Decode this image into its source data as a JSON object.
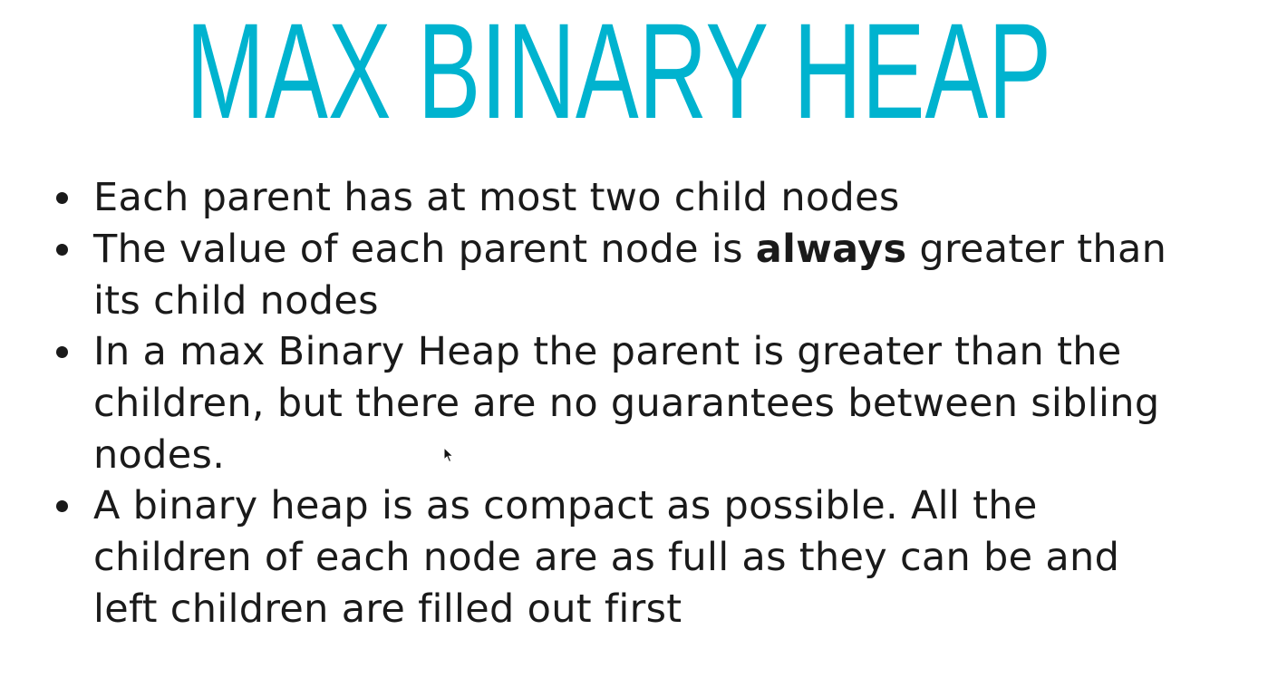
{
  "slide": {
    "title": "MAX BINARY HEAP",
    "title_color": "#00b3cf",
    "text_color": "#1a1a1a",
    "bullets": [
      {
        "lines": [
          "Each parent has at most two child nodes"
        ]
      },
      {
        "line1_before": "The value of each parent node is ",
        "line1_bold": "always",
        "line1_after": " greater than",
        "line2": "its child nodes"
      },
      {
        "lines": [
          "In a max Binary Heap the parent is greater than the",
          "children, but there are no guarantees between sibling",
          "nodes."
        ]
      },
      {
        "lines": [
          "A binary heap is as compact as possible. All the",
          "children of each node are as full as they can be and",
          "left children are filled out first"
        ]
      }
    ]
  }
}
